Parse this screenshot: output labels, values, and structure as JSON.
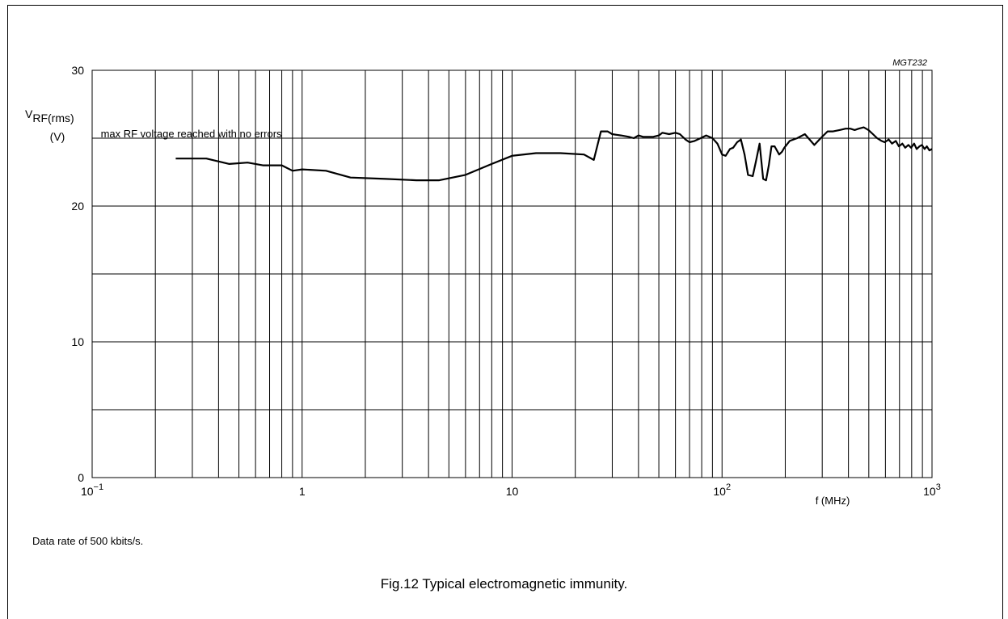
{
  "figure": {
    "code": "MGT232",
    "note": "Data rate of 500 kbits/s.",
    "caption": "Fig.12  Typical electromagnetic immunity."
  },
  "chart_data": {
    "type": "line",
    "x_scale": "log",
    "xlim": [
      0.1,
      1000
    ],
    "ylim": [
      0,
      30
    ],
    "grid": true,
    "xlabel": "f (MHz)",
    "ylabel_main": "V",
    "ylabel_sub": "RF(rms)",
    "ylabel_unit": "(V)",
    "x_tick_labels": [
      {
        "value": 0.1,
        "base": "10",
        "exp": "−1"
      },
      {
        "value": 1,
        "base": "1",
        "exp": ""
      },
      {
        "value": 10,
        "base": "10",
        "exp": ""
      },
      {
        "value": 100,
        "base": "10",
        "exp": "2"
      },
      {
        "value": 1000,
        "base": "10",
        "exp": "3"
      }
    ],
    "y_ticks": [
      0,
      10,
      20,
      30
    ],
    "y_grid": [
      5,
      10,
      15,
      20,
      25
    ],
    "annotation": {
      "text": "max RF voltage reached with no errors",
      "x": 0.106,
      "y": 25.3
    },
    "series": [
      {
        "x": [
          0.25,
          0.35,
          0.45,
          0.55,
          0.65,
          0.8,
          0.9,
          1.0,
          1.3,
          1.7,
          2.5,
          3.5,
          4.5,
          6,
          8,
          10,
          13,
          17,
          22,
          24.5,
          26.5,
          28.5,
          30,
          33,
          36,
          38,
          40,
          42,
          47,
          50,
          52,
          56,
          60,
          63,
          67,
          70,
          74,
          79,
          84,
          90,
          95,
          100,
          104,
          109,
          113,
          118,
          123,
          128,
          133,
          140,
          145,
          151,
          157,
          162,
          167,
          172,
          178,
          187,
          193,
          198,
          210,
          228,
          248,
          275,
          295,
          318,
          338,
          363,
          388,
          408,
          428,
          448,
          473,
          498,
          523,
          548,
          575,
          595,
          622,
          645,
          672,
          695,
          722,
          745,
          772,
          795,
          822,
          845,
          872,
          895,
          922,
          945,
          972,
          1000
        ],
        "values": [
          23.5,
          23.5,
          23.1,
          23.2,
          23.0,
          23.0,
          22.6,
          22.7,
          22.6,
          22.1,
          22.0,
          21.9,
          21.9,
          22.3,
          23.1,
          23.7,
          23.9,
          23.9,
          23.8,
          23.4,
          25.5,
          25.5,
          25.3,
          25.2,
          25.1,
          25.0,
          25.2,
          25.1,
          25.1,
          25.2,
          25.4,
          25.3,
          25.4,
          25.3,
          24.9,
          24.7,
          24.8,
          25.0,
          25.2,
          25.0,
          24.6,
          23.8,
          23.7,
          24.2,
          24.3,
          24.7,
          24.9,
          23.8,
          22.3,
          22.2,
          23.3,
          24.6,
          22.0,
          21.9,
          23.0,
          24.4,
          24.4,
          23.8,
          24.0,
          24.3,
          24.8,
          25.0,
          25.3,
          24.5,
          25.0,
          25.5,
          25.5,
          25.6,
          25.7,
          25.7,
          25.6,
          25.7,
          25.8,
          25.6,
          25.3,
          25.0,
          24.8,
          24.7,
          24.9,
          24.6,
          24.8,
          24.4,
          24.6,
          24.3,
          24.5,
          24.3,
          24.6,
          24.2,
          24.4,
          24.5,
          24.2,
          24.4,
          24.1,
          24.2
        ]
      }
    ]
  }
}
